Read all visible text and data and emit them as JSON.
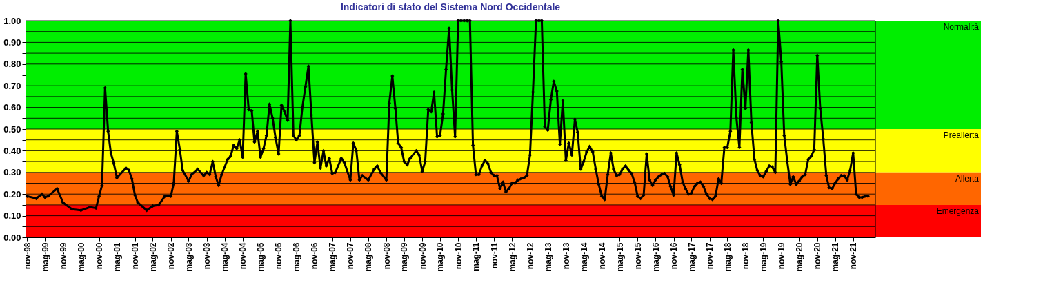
{
  "chart_data": {
    "type": "line",
    "title": "Indicatori di stato del Sistema Nord Occidentale",
    "x": [
      "1998-11",
      "1999-02",
      "1999-04",
      "1999-05",
      "1999-06",
      "1999-09",
      "1999-11",
      "2000-02",
      "2000-05",
      "2000-08",
      "2000-10",
      "2000-11",
      "2000-12",
      "2001-01",
      "2001-02",
      "2001-03",
      "2001-04",
      "2001-05",
      "2001-08",
      "2001-09",
      "2001-10",
      "2001-11",
      "2001-12",
      "2002-03",
      "2002-05",
      "2002-07",
      "2002-09",
      "2002-11",
      "2002-12",
      "2003-01",
      "2003-02",
      "2003-03",
      "2003-05",
      "2003-06",
      "2003-08",
      "2003-10",
      "2003-11",
      "2003-12",
      "2004-01",
      "2004-02",
      "2004-03",
      "2004-04",
      "2004-06",
      "2004-07",
      "2004-08",
      "2004-09",
      "2004-10",
      "2004-11",
      "2004-12",
      "2005-01",
      "2005-02",
      "2005-03",
      "2005-04",
      "2005-05",
      "2005-06",
      "2005-07",
      "2005-08",
      "2005-09",
      "2005-10",
      "2005-11",
      "2005-12",
      "2006-01",
      "2006-02",
      "2006-03",
      "2006-04",
      "2006-05",
      "2006-06",
      "2006-07",
      "2006-08",
      "2006-09",
      "2006-10",
      "2006-11",
      "2006-12",
      "2007-01",
      "2007-02",
      "2007-03",
      "2007-04",
      "2007-05",
      "2007-06",
      "2007-08",
      "2007-09",
      "2007-11",
      "2007-12",
      "2008-01",
      "2008-02",
      "2008-03",
      "2008-05",
      "2008-07",
      "2008-08",
      "2008-09",
      "2008-11",
      "2008-12",
      "2009-01",
      "2009-02",
      "2009-03",
      "2009-04",
      "2009-05",
      "2009-06",
      "2009-07",
      "2009-09",
      "2009-10",
      "2009-11",
      "2009-12",
      "2010-01",
      "2010-02",
      "2010-03",
      "2010-04",
      "2010-05",
      "2010-06",
      "2010-07",
      "2010-08",
      "2010-09",
      "2010-10",
      "2010-11",
      "2010-12",
      "2011-01",
      "2011-02",
      "2011-03",
      "2011-04",
      "2011-05",
      "2011-06",
      "2011-07",
      "2011-08",
      "2011-09",
      "2011-10",
      "2011-11",
      "2011-12",
      "2012-01",
      "2012-02",
      "2012-03",
      "2012-04",
      "2012-05",
      "2012-06",
      "2012-07",
      "2012-08",
      "2012-09",
      "2012-10",
      "2012-11",
      "2012-12",
      "2013-01",
      "2013-02",
      "2013-03",
      "2013-04",
      "2013-05",
      "2013-06",
      "2013-07",
      "2013-08",
      "2013-09",
      "2013-10",
      "2013-11",
      "2013-12",
      "2014-01",
      "2014-02",
      "2014-03",
      "2014-04",
      "2014-05",
      "2014-06",
      "2014-07",
      "2014-08",
      "2014-09",
      "2014-10",
      "2014-11",
      "2014-12",
      "2015-01",
      "2015-02",
      "2015-03",
      "2015-04",
      "2015-05",
      "2015-06",
      "2015-07",
      "2015-08",
      "2015-09",
      "2015-10",
      "2015-11",
      "2015-12",
      "2016-01",
      "2016-02",
      "2016-03",
      "2016-04",
      "2016-05",
      "2016-06",
      "2016-07",
      "2016-08",
      "2016-09",
      "2016-10",
      "2016-11",
      "2016-12",
      "2017-01",
      "2017-02",
      "2017-03",
      "2017-04",
      "2017-05",
      "2017-06",
      "2017-07",
      "2017-08",
      "2017-09",
      "2017-10",
      "2017-11",
      "2017-12",
      "2018-01",
      "2018-02",
      "2018-03",
      "2018-04",
      "2018-05",
      "2018-06",
      "2018-07",
      "2018-08",
      "2018-09",
      "2018-10",
      "2018-11",
      "2018-12",
      "2019-01",
      "2019-02",
      "2019-03",
      "2019-04",
      "2019-05",
      "2019-06",
      "2019-07",
      "2019-08",
      "2019-09",
      "2019-10",
      "2019-11",
      "2019-12",
      "2020-01",
      "2020-02",
      "2020-03",
      "2020-04",
      "2020-05",
      "2020-06",
      "2020-07",
      "2020-08",
      "2020-09",
      "2020-10",
      "2020-11",
      "2020-12",
      "2021-01",
      "2021-02",
      "2021-03",
      "2021-04",
      "2021-05",
      "2021-06",
      "2021-07",
      "2021-08",
      "2021-09",
      "2021-10",
      "2021-11",
      "2021-12",
      "2022-01",
      "2022-02",
      "2022-03",
      "2022-04"
    ],
    "series": [
      {
        "color": "#000000",
        "values": [
          0.19,
          0.18,
          0.2,
          0.185,
          0.19,
          0.225,
          0.16,
          0.13,
          0.125,
          0.14,
          0.135,
          0.19,
          0.24,
          0.69,
          0.49,
          0.39,
          0.34,
          0.275,
          0.32,
          0.31,
          0.27,
          0.195,
          0.16,
          0.125,
          0.145,
          0.15,
          0.19,
          0.19,
          0.25,
          0.49,
          0.405,
          0.31,
          0.26,
          0.29,
          0.315,
          0.285,
          0.3,
          0.29,
          0.35,
          0.28,
          0.24,
          0.29,
          0.36,
          0.375,
          0.425,
          0.41,
          0.45,
          0.37,
          0.755,
          0.59,
          0.585,
          0.44,
          0.49,
          0.37,
          0.41,
          0.47,
          0.615,
          0.55,
          0.46,
          0.385,
          0.61,
          0.58,
          0.54,
          1.0,
          0.47,
          0.45,
          0.47,
          0.6,
          0.695,
          0.79,
          0.565,
          0.345,
          0.44,
          0.32,
          0.4,
          0.33,
          0.365,
          0.295,
          0.3,
          0.365,
          0.345,
          0.265,
          0.435,
          0.4,
          0.265,
          0.285,
          0.265,
          0.315,
          0.33,
          0.3,
          0.265,
          0.62,
          0.745,
          0.595,
          0.435,
          0.415,
          0.35,
          0.335,
          0.365,
          0.4,
          0.38,
          0.305,
          0.35,
          0.59,
          0.58,
          0.67,
          0.465,
          0.47,
          0.57,
          0.775,
          0.965,
          0.68,
          0.465,
          1.0,
          1.0,
          1.0,
          1.0,
          1.0,
          0.425,
          0.29,
          0.29,
          0.33,
          0.355,
          0.34,
          0.3,
          0.285,
          0.285,
          0.225,
          0.255,
          0.21,
          0.225,
          0.25,
          0.25,
          0.265,
          0.27,
          0.275,
          0.285,
          0.38,
          0.67,
          1.0,
          1.0,
          1.0,
          0.51,
          0.495,
          0.635,
          0.72,
          0.675,
          0.43,
          0.63,
          0.355,
          0.435,
          0.38,
          0.545,
          0.485,
          0.315,
          0.35,
          0.395,
          0.42,
          0.395,
          0.315,
          0.245,
          0.19,
          0.175,
          0.29,
          0.39,
          0.315,
          0.285,
          0.29,
          0.315,
          0.33,
          0.31,
          0.295,
          0.255,
          0.19,
          0.18,
          0.195,
          0.385,
          0.265,
          0.24,
          0.265,
          0.28,
          0.29,
          0.295,
          0.28,
          0.235,
          0.195,
          0.39,
          0.335,
          0.255,
          0.225,
          0.2,
          0.205,
          0.235,
          0.25,
          0.255,
          0.235,
          0.2,
          0.18,
          0.175,
          0.19,
          0.27,
          0.25,
          0.415,
          0.415,
          0.49,
          0.865,
          0.555,
          0.415,
          0.775,
          0.595,
          0.865,
          0.53,
          0.36,
          0.31,
          0.285,
          0.28,
          0.305,
          0.33,
          0.325,
          0.3,
          1.0,
          0.81,
          0.47,
          0.35,
          0.245,
          0.28,
          0.245,
          0.26,
          0.28,
          0.29,
          0.36,
          0.375,
          0.405,
          0.84,
          0.595,
          0.455,
          0.285,
          0.23,
          0.225,
          0.25,
          0.27,
          0.285,
          0.285,
          0.265,
          0.31,
          0.39,
          0.2,
          0.185,
          0.185,
          0.19,
          0.19
        ]
      }
    ],
    "xlim": [
      "1998-10-15",
      "2022-06-15"
    ],
    "xticks": [
      {
        "value": "1998-11",
        "label": "nov-98"
      },
      {
        "value": "1999-05",
        "label": "mag-99"
      },
      {
        "value": "1999-11",
        "label": "nov-99"
      },
      {
        "value": "2000-05",
        "label": "mag-00"
      },
      {
        "value": "2000-11",
        "label": "nov-00"
      },
      {
        "value": "2001-05",
        "label": "mag-01"
      },
      {
        "value": "2001-11",
        "label": "nov-01"
      },
      {
        "value": "2002-05",
        "label": "mag-02"
      },
      {
        "value": "2002-11",
        "label": "nov-02"
      },
      {
        "value": "2003-05",
        "label": "mag-03"
      },
      {
        "value": "2003-11",
        "label": "nov-03"
      },
      {
        "value": "2004-05",
        "label": "mag-04"
      },
      {
        "value": "2004-11",
        "label": "nov-04"
      },
      {
        "value": "2005-05",
        "label": "mag-05"
      },
      {
        "value": "2005-11",
        "label": "nov-05"
      },
      {
        "value": "2006-05",
        "label": "mag-06"
      },
      {
        "value": "2006-11",
        "label": "nov-06"
      },
      {
        "value": "2007-05",
        "label": "mag-07"
      },
      {
        "value": "2007-11",
        "label": "nov-07"
      },
      {
        "value": "2008-05",
        "label": "mag-08"
      },
      {
        "value": "2008-11",
        "label": "nov-08"
      },
      {
        "value": "2009-05",
        "label": "mag-09"
      },
      {
        "value": "2009-11",
        "label": "nov-09"
      },
      {
        "value": "2010-05",
        "label": "mag-10"
      },
      {
        "value": "2010-11",
        "label": "nov-10"
      },
      {
        "value": "2011-05",
        "label": "mag-11"
      },
      {
        "value": "2011-11",
        "label": "nov-11"
      },
      {
        "value": "2012-05",
        "label": "mag-12"
      },
      {
        "value": "2012-11",
        "label": "nov-12"
      },
      {
        "value": "2013-05",
        "label": "mag-13"
      },
      {
        "value": "2013-11",
        "label": "nov-13"
      },
      {
        "value": "2014-05",
        "label": "mag-14"
      },
      {
        "value": "2014-11",
        "label": "nov-14"
      },
      {
        "value": "2015-05",
        "label": "mag-15"
      },
      {
        "value": "2015-11",
        "label": "nov-15"
      },
      {
        "value": "2016-05",
        "label": "mag-16"
      },
      {
        "value": "2016-11",
        "label": "nov-16"
      },
      {
        "value": "2017-05",
        "label": "mag-17"
      },
      {
        "value": "2017-11",
        "label": "nov-17"
      },
      {
        "value": "2018-05",
        "label": "mag-18"
      },
      {
        "value": "2018-11",
        "label": "nov-18"
      },
      {
        "value": "2019-05",
        "label": "mag-19"
      },
      {
        "value": "2019-11",
        "label": "nov-19"
      },
      {
        "value": "2020-05",
        "label": "mag-20"
      },
      {
        "value": "2020-11",
        "label": "nov-20"
      },
      {
        "value": "2021-05",
        "label": "mag-21"
      },
      {
        "value": "2021-11",
        "label": "nov-21"
      }
    ],
    "ylim": [
      0,
      1
    ],
    "yticks": [
      {
        "value": 0,
        "label": "0.00"
      },
      {
        "value": 0.05,
        "label": null
      },
      {
        "value": 0.1,
        "label": "0.10"
      },
      {
        "value": 0.15,
        "label": null
      },
      {
        "value": 0.2,
        "label": "0.20"
      },
      {
        "value": 0.25,
        "label": null
      },
      {
        "value": 0.3,
        "label": "0.30"
      },
      {
        "value": 0.35,
        "label": null
      },
      {
        "value": 0.4,
        "label": "0.40"
      },
      {
        "value": 0.45,
        "label": null
      },
      {
        "value": 0.5,
        "label": "0.50"
      },
      {
        "value": 0.55,
        "label": null
      },
      {
        "value": 0.6,
        "label": "0.60"
      },
      {
        "value": 0.65,
        "label": null
      },
      {
        "value": 0.7,
        "label": "0.70"
      },
      {
        "value": 0.75,
        "label": null
      },
      {
        "value": 0.8,
        "label": "0.80"
      },
      {
        "value": 0.85,
        "label": null
      },
      {
        "value": 0.9,
        "label": "0.90"
      },
      {
        "value": 0.95,
        "label": null
      },
      {
        "value": 1,
        "label": "1.00"
      }
    ],
    "grid": "y",
    "marker": "diamond",
    "line_style": "solid",
    "bands": [
      {
        "axis": "y",
        "from": 0.5,
        "to": 1,
        "label": "Normalità",
        "color": "#00ee00"
      },
      {
        "axis": "y",
        "from": 0.3,
        "to": 0.5,
        "label": "Preallerta",
        "color": "#ffff00"
      },
      {
        "axis": "y",
        "from": 0.15,
        "to": 0.3,
        "label": "Allerta",
        "color": "#ff6600"
      },
      {
        "axis": "y",
        "from": 0,
        "to": 0.15,
        "label": "Emergenza",
        "color": "#ff0000"
      }
    ]
  }
}
